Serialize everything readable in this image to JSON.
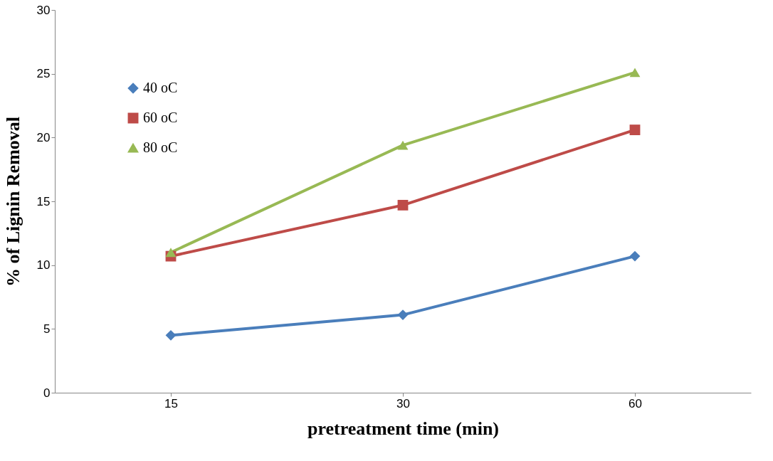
{
  "chart_data": {
    "type": "line",
    "xlabel": "pretreatment time (min)",
    "ylabel": "% of Lignin Removal",
    "categories": [
      "15",
      "30",
      "60"
    ],
    "series": [
      {
        "name": "40 oC",
        "color": "#4a7ebb",
        "marker": "diamond",
        "values": [
          4.5,
          6.1,
          10.7
        ]
      },
      {
        "name": "60 oC",
        "color": "#be4b48",
        "marker": "square",
        "values": [
          10.7,
          14.7,
          20.6
        ]
      },
      {
        "name": "80 oC",
        "color": "#98b954",
        "marker": "triangle",
        "values": [
          11.0,
          19.4,
          25.1
        ]
      }
    ],
    "ylim": [
      0,
      30
    ],
    "yticks": [
      0,
      5,
      10,
      15,
      20,
      25,
      30
    ],
    "grid": false,
    "legend": "top left"
  }
}
